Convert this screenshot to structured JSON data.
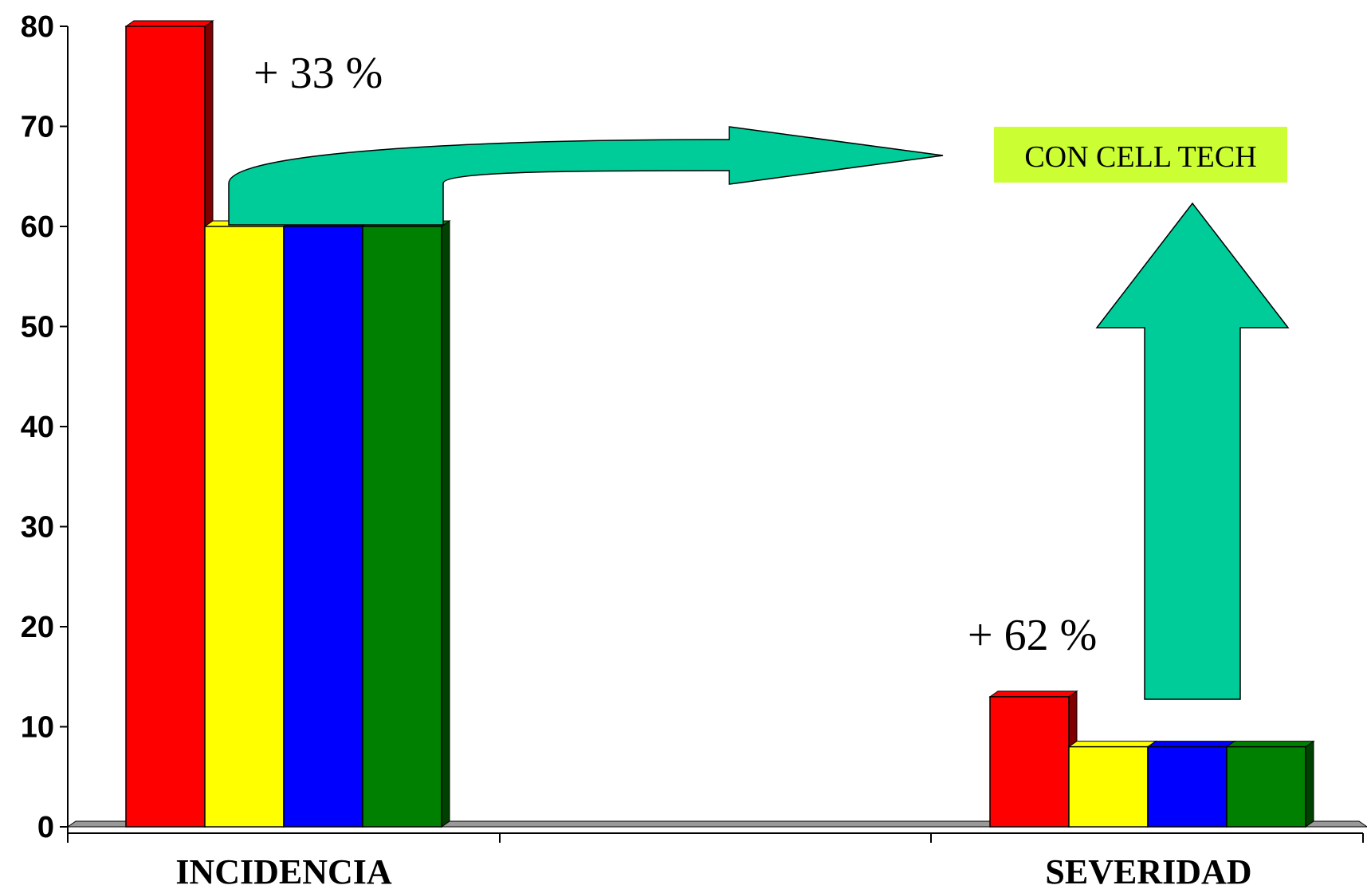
{
  "chart_data": {
    "type": "bar",
    "categories": [
      "INCIDENCIA",
      "SEVERIDAD"
    ],
    "series": [
      {
        "values": [
          80,
          13
        ],
        "color": "#ff0000",
        "side_color": "#800000"
      },
      {
        "values": [
          60,
          8
        ],
        "color": "#ffff00",
        "side_color": "#808000"
      },
      {
        "values": [
          60,
          8
        ],
        "color": "#0000ff",
        "side_color": "#000080"
      },
      {
        "values": [
          60,
          8
        ],
        "color": "#008000",
        "side_color": "#004000"
      }
    ],
    "ylim": [
      0,
      80
    ],
    "yticks": [
      0,
      10,
      20,
      30,
      40,
      50,
      60,
      70,
      80
    ],
    "grid": false,
    "legend": "none",
    "annotations": [
      {
        "text": "+ 33 %",
        "category": "INCIDENCIA"
      },
      {
        "text": "+ 62 %",
        "category": "SEVERIDAD"
      }
    ],
    "callout": {
      "text": "CON CELL TECH",
      "background": "#ccff33"
    },
    "arrow_color": "#00cc99"
  }
}
